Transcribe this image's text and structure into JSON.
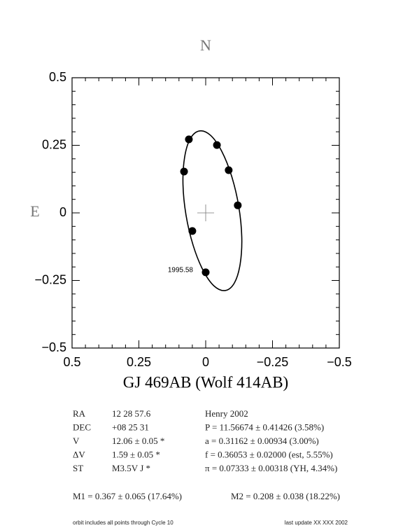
{
  "chart_data": {
    "type": "scatter",
    "top_label": "N",
    "left_label": "E",
    "annotation": "1995.58",
    "x_label": "GJ 469AB (Wolf 414AB)",
    "xlim": [
      0.5,
      -0.5
    ],
    "ylim": [
      -0.5,
      0.5
    ],
    "xticks": [
      0.5,
      0.25,
      0,
      {
        "value": -0.25,
        "label": "−0.25"
      },
      {
        "value": -0.5,
        "label": "−0.5"
      }
    ],
    "yticks": [
      {
        "value": -0.5,
        "label": "−0.5"
      },
      {
        "value": -0.25,
        "label": "−0.25"
      },
      0,
      0.25,
      0.5
    ],
    "minorticks": [
      -0.45,
      -0.4,
      -0.35,
      -0.3,
      -0.2,
      -0.15,
      -0.1,
      -0.05,
      0.05,
      0.1,
      0.15,
      0.2,
      0.3,
      0.35,
      0.4,
      0.45
    ],
    "color": "#000000",
    "x": [
      0.063,
      -0.042,
      0.081,
      -0.086,
      -0.12,
      0.05,
      0
    ],
    "values": [
      0.272,
      0.251,
      0.153,
      0.158,
      0.028,
      -0.067,
      -0.22
    ],
    "orbit": {
      "x": [
        0.024,
        0.058,
        0.079,
        0.085,
        0.0736,
        0.047,
        0.01,
        -0.032,
        -0.074,
        -0.108,
        -0.129,
        -0.135,
        -0.1236,
        -0.097,
        -0.06,
        -0.018
      ],
      "values": [
        0.303,
        0.274,
        0.205,
        0.106,
        -0.0084,
        -0.12,
        -0.212,
        -0.271,
        -0.287,
        -0.258,
        -0.189,
        -0.09,
        0.0244,
        0.136,
        0.228,
        0.287
      ]
    }
  },
  "info": {
    "rows": [
      [
        "RA",
        "12 28 57.6",
        "Henry 2002"
      ],
      [
        "DEC",
        "+08 25 31",
        "P = 11.56674 ± 0.41426 (3.58%)"
      ],
      [
        "V",
        "12.06 ± 0.05 *",
        "a = 0.31162 ± 0.00934 (3.00%)"
      ],
      [
        "ΔV",
        "1.59 ± 0.05 *",
        "f = 0.36053 ± 0.02000 (est, 5.55%)"
      ],
      [
        "ST",
        "M3.5V J *",
        "π = 0.07333 ± 0.00318 (YH, 4.34%)"
      ]
    ],
    "masses": [
      "M1 = 0.367 ± 0.065 (17.64%)",
      "M2 = 0.208 ± 0.038 (18.22%)"
    ],
    "footer": [
      "orbit includes all points through Cycle 10",
      "last update XX XXX 2002"
    ]
  }
}
